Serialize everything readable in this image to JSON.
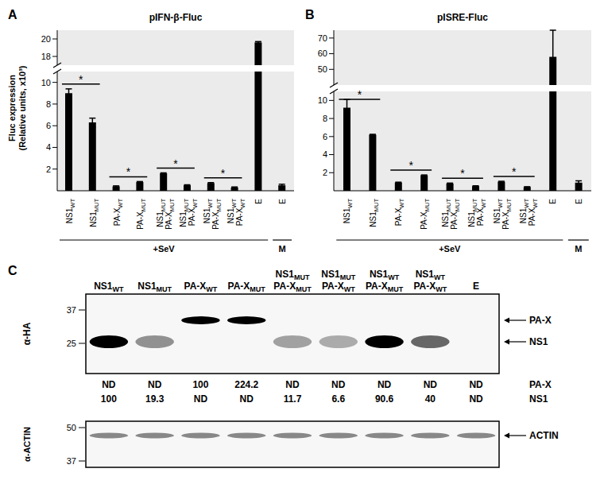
{
  "chart_data": [
    {
      "panel": "A",
      "type": "bar",
      "title": "pIFN-β-Fluc",
      "ylabel": "Fluc expression (Relative units, x10³)",
      "categories": [
        "NS1WT",
        "NS1MUT",
        "PA-XWT",
        "PA-XMUT",
        "NS1MUT PA-XMUT",
        "NS1MUT PA-XWT",
        "NS1WT PA-XMUT",
        "NS1WT PA-XWT",
        "E",
        "E"
      ],
      "values": [
        9.0,
        6.3,
        0.4,
        0.8,
        1.6,
        0.5,
        0.7,
        0.3,
        19.6,
        0.5
      ],
      "errors": [
        0.4,
        0.4,
        0.05,
        0.05,
        0.05,
        0.05,
        0.05,
        0.05,
        0.1,
        0.1
      ],
      "color": "#000000",
      "ylim": [
        0,
        21
      ],
      "yticks": [
        2,
        4,
        6,
        8,
        10,
        18,
        20
      ],
      "y_break": [
        11,
        17
      ],
      "grid": false,
      "groups": [
        {
          "label": "+SeV",
          "first": 0,
          "last": 8
        },
        {
          "label": "M",
          "first": 9,
          "last": 9
        }
      ],
      "significance": [
        {
          "bars": [
            0,
            1
          ],
          "label": "*"
        },
        {
          "bars": [
            2,
            3
          ],
          "label": "*"
        },
        {
          "bars": [
            4,
            5
          ],
          "label": "*"
        },
        {
          "bars": [
            6,
            7
          ],
          "label": "*"
        }
      ]
    },
    {
      "panel": "B",
      "type": "bar",
      "title": "pISRE-Fluc",
      "categories": [
        "NS1WT",
        "NS1MUT",
        "PA-XWT",
        "PA-XMUT",
        "NS1MUT PA-XMUT",
        "NS1MUT PA-XWT",
        "NS1WT PA-XMUT",
        "NS1WT PA-XWT",
        "E",
        "E"
      ],
      "values": [
        9.2,
        6.2,
        0.9,
        1.7,
        0.8,
        0.5,
        1.0,
        0.4,
        58,
        0.9
      ],
      "errors": [
        0.9,
        0.05,
        0.05,
        0.05,
        0.05,
        0.05,
        0.05,
        0.05,
        17,
        0.2
      ],
      "color": "#000000",
      "ylim": [
        0,
        75
      ],
      "yticks": [
        2,
        4,
        6,
        8,
        10,
        50,
        60,
        70
      ],
      "y_break": [
        11,
        40
      ],
      "grid": false,
      "groups": [
        {
          "label": "+SeV",
          "first": 0,
          "last": 8
        },
        {
          "label": "M",
          "first": 9,
          "last": 9
        }
      ],
      "significance": [
        {
          "bars": [
            0,
            1
          ],
          "label": "*"
        },
        {
          "bars": [
            2,
            3
          ],
          "label": "*"
        },
        {
          "bars": [
            4,
            5
          ],
          "label": "*"
        },
        {
          "bars": [
            6,
            7
          ],
          "label": "*"
        }
      ]
    }
  ],
  "blot": {
    "panel": "C",
    "lanes": [
      "NS1WT",
      "NS1MUT",
      "PA-XWT",
      "PA-XMUT",
      "NS1MUT PA-XMUT",
      "NS1MUT PA-XWT",
      "NS1WT PA-XMUT",
      "NS1WT PA-XWT",
      "E"
    ],
    "membranes": [
      {
        "antibody": "α-HA",
        "markers": [
          37,
          25
        ],
        "bands": [
          "PA-X",
          "NS1"
        ]
      },
      {
        "antibody": "α-ACTIN",
        "markers": [
          50,
          37
        ],
        "bands": [
          "ACTIN"
        ]
      }
    ],
    "quantification": [
      {
        "name": "PA-X",
        "values": [
          "ND",
          "ND",
          100,
          224.2,
          "ND",
          "ND",
          "ND",
          "ND",
          "ND"
        ]
      },
      {
        "name": "NS1",
        "values": [
          100,
          19.3,
          "ND",
          "ND",
          11.7,
          6.6,
          90.6,
          40,
          "ND"
        ]
      }
    ]
  }
}
